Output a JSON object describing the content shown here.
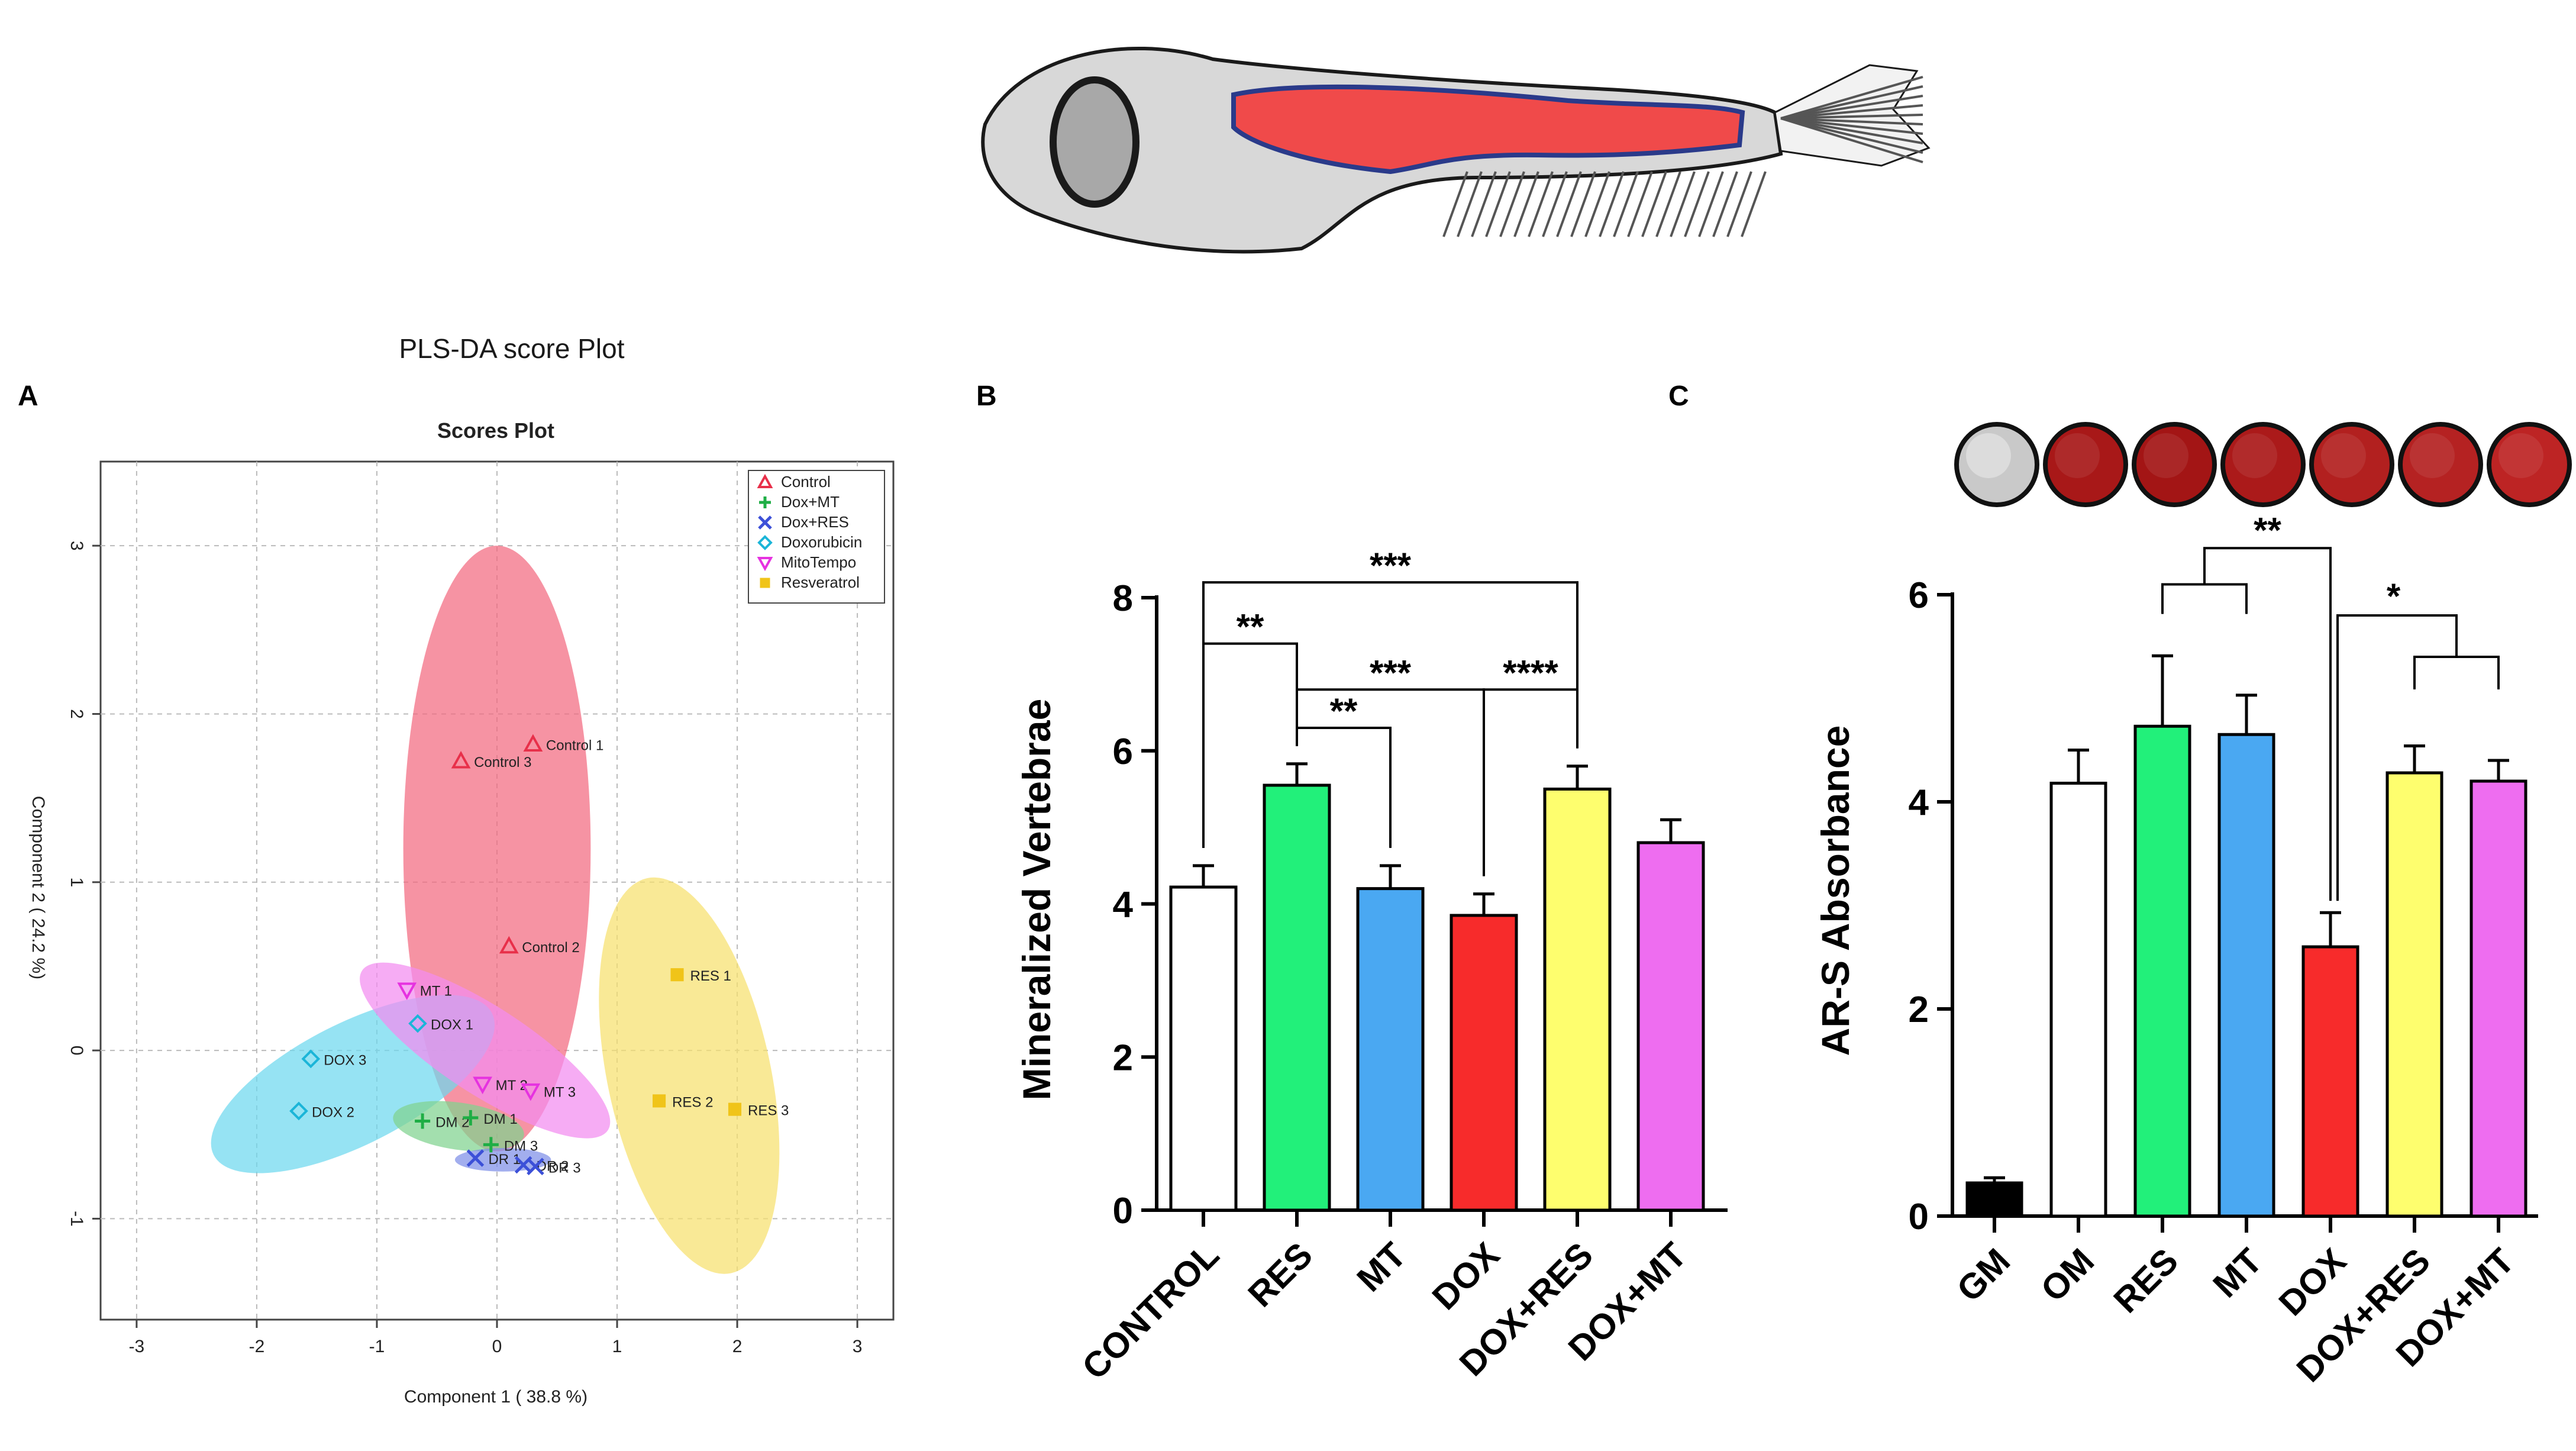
{
  "figure": {
    "fish_illustration": "zebrafish-skeleton-icon",
    "plate_colors": [
      "#c9c9c9",
      "#a81818",
      "#a31515",
      "#ab1a1a",
      "#b2201f",
      "#b52222",
      "#bd2424"
    ]
  },
  "chart_data": [
    {
      "panel": "A",
      "super_title": "PLS-DA score Plot",
      "title": "Scores Plot",
      "type": "scatter",
      "xlabel": "Component 1 ( 38.8 %)",
      "ylabel": "Component 2 ( 24.2 %)",
      "xlim": [
        -3.3,
        3.3
      ],
      "ylim": [
        -1.6,
        3.5
      ],
      "xticks": [
        -3,
        -2,
        -1,
        0,
        1,
        2,
        3
      ],
      "yticks": [
        -1,
        0,
        1,
        2,
        3
      ],
      "grid": true,
      "legend_position": "top-right",
      "series": [
        {
          "name": "Control",
          "color": "#e8304a",
          "marker": "triangle",
          "points": [
            {
              "label": "Control 1",
              "x": 0.3,
              "y": 1.82
            },
            {
              "label": "Control 3",
              "x": -0.3,
              "y": 1.72
            },
            {
              "label": "Control 2",
              "x": 0.1,
              "y": 0.62
            }
          ]
        },
        {
          "name": "Dox+MT",
          "color": "#1fae45",
          "marker": "plus",
          "points": [
            {
              "label": "DM 2",
              "x": -0.62,
              "y": -0.42
            },
            {
              "label": "DM 1",
              "x": -0.22,
              "y": -0.4
            },
            {
              "label": "DM 3",
              "x": -0.05,
              "y": -0.56
            }
          ]
        },
        {
          "name": "Dox+RES",
          "color": "#3c50d8",
          "marker": "cross",
          "points": [
            {
              "label": "DR 1",
              "x": -0.18,
              "y": -0.64
            },
            {
              "label": "DR 2",
              "x": 0.22,
              "y": -0.68
            },
            {
              "label": "DR 3",
              "x": 0.32,
              "y": -0.69
            }
          ]
        },
        {
          "name": "Doxorubicin",
          "color": "#1bb5d8",
          "marker": "diamond",
          "points": [
            {
              "label": "DOX 1",
              "x": -0.66,
              "y": 0.16
            },
            {
              "label": "DOX 3",
              "x": -1.55,
              "y": -0.05
            },
            {
              "label": "DOX 2",
              "x": -1.65,
              "y": -0.36
            }
          ]
        },
        {
          "name": "MitoTempo",
          "color": "#e632e0",
          "marker": "triangle-down",
          "points": [
            {
              "label": "MT 1",
              "x": -0.75,
              "y": 0.36
            },
            {
              "label": "MT 2",
              "x": -0.12,
              "y": -0.2
            },
            {
              "label": "MT 3",
              "x": 0.28,
              "y": -0.24
            }
          ]
        },
        {
          "name": "Resveratrol",
          "color": "#f0c419",
          "marker": "square",
          "points": [
            {
              "label": "RES 1",
              "x": 1.5,
              "y": 0.45
            },
            {
              "label": "RES 2",
              "x": 1.35,
              "y": -0.3
            },
            {
              "label": "RES 3",
              "x": 1.98,
              "y": -0.35
            }
          ]
        }
      ],
      "ellipses": [
        {
          "group": "Control",
          "color": "#f26a80",
          "center": [
            0.0,
            1.2
          ],
          "semi_axes": [
            0.78,
            1.8
          ],
          "rotation_deg": 0
        },
        {
          "group": "Resveratrol",
          "color": "#f7e06d",
          "center": [
            1.6,
            -0.15
          ],
          "semi_axes": [
            0.68,
            1.2
          ],
          "rotation_deg": 12
        },
        {
          "group": "Doxorubicin",
          "color": "#6dd8ee",
          "center": [
            -1.2,
            -0.2
          ],
          "semi_axes": [
            1.3,
            0.36
          ],
          "rotation_deg": 27
        },
        {
          "group": "MitoTempo",
          "color": "#f28cf0",
          "center": [
            -0.1,
            0.0
          ],
          "semi_axes": [
            1.22,
            0.26
          ],
          "rotation_deg": -33
        },
        {
          "group": "Dox+MT",
          "color": "#7fd38f",
          "center": [
            -0.32,
            -0.45
          ],
          "semi_axes": [
            0.55,
            0.14
          ],
          "rotation_deg": -8
        },
        {
          "group": "Dox+RES",
          "color": "#7e8fe8",
          "center": [
            0.05,
            -0.65
          ],
          "semi_axes": [
            0.4,
            0.07
          ],
          "rotation_deg": 0
        }
      ]
    },
    {
      "panel": "B",
      "type": "bar",
      "ylabel": "Mineralized Vertebrae",
      "ylim": [
        0,
        8
      ],
      "yticks": [
        0,
        2,
        4,
        6,
        8
      ],
      "categories": [
        "CONTROL",
        "RES",
        "MT",
        "DOX",
        "DOX+RES",
        "DOX+MT"
      ],
      "values": [
        4.22,
        5.55,
        4.2,
        3.85,
        5.5,
        4.8
      ],
      "errors": [
        0.28,
        0.28,
        0.3,
        0.28,
        0.3,
        0.3
      ],
      "colors": [
        "#ffffff",
        "#22f07a",
        "#4aa8f2",
        "#f72b2b",
        "#fefe6e",
        "#ee6df0"
      ],
      "significance": [
        {
          "a": 0,
          "b": 1,
          "label": "**",
          "level": 7.4
        },
        {
          "a": 0,
          "b": 4,
          "label": "***",
          "level": 8.2
        },
        {
          "a": 1,
          "b": 2,
          "label": "**",
          "level": 6.3
        },
        {
          "a": 1,
          "b": 3,
          "label": "***",
          "level": 6.8
        },
        {
          "a": 3,
          "b": 4,
          "label": "****",
          "level": 6.8
        }
      ]
    },
    {
      "panel": "C",
      "type": "bar",
      "ylabel": "AR-S Absorbance",
      "ylim": [
        0,
        6
      ],
      "yticks": [
        0,
        2,
        4,
        6
      ],
      "categories": [
        "GM",
        "OM",
        "RES",
        "MT",
        "DOX",
        "DOX+RES",
        "DOX+MT"
      ],
      "values": [
        0.32,
        4.18,
        4.73,
        4.65,
        2.6,
        4.28,
        4.2
      ],
      "errors": [
        0.05,
        0.32,
        0.68,
        0.38,
        0.33,
        0.26,
        0.2
      ],
      "colors": [
        "#000000",
        "#ffffff",
        "#22f07a",
        "#4aa8f2",
        "#f72b2b",
        "#fefe6e",
        "#ee6df0"
      ],
      "significance": [
        {
          "label": "**",
          "bracket": [
            [
              2,
              3
            ],
            4
          ],
          "inner_level": 6.1,
          "outer_level": 6.45
        },
        {
          "label": "*",
          "bracket": [
            4,
            [
              5,
              6
            ]
          ],
          "inner_level": 5.4,
          "outer_level": 5.8
        }
      ]
    }
  ]
}
